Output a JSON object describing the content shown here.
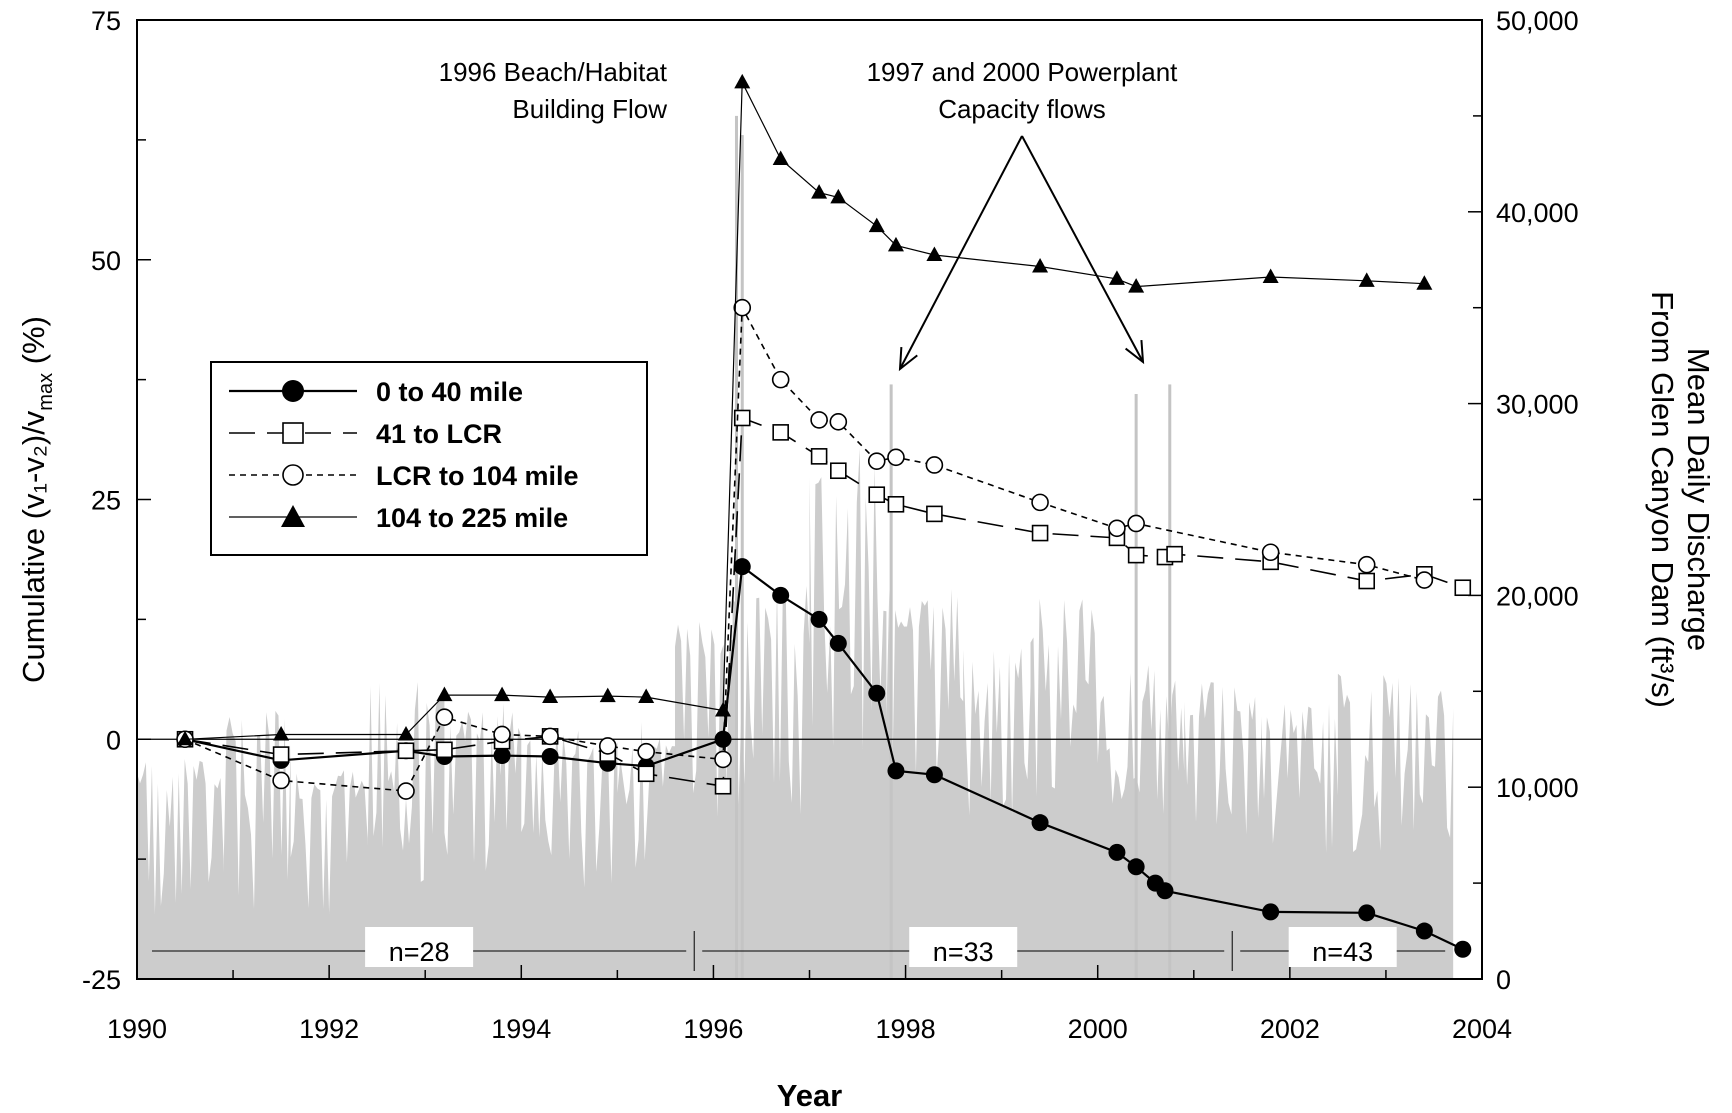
{
  "chart_data": {
    "type": "line",
    "x_label": "Year",
    "y_label": "Cumulative (v₁-v₂)/v",
    "y_label_subscript": "max",
    "y_label_suffix": " (%)",
    "y2_label_line1": "Mean Daily Discharge",
    "y2_label_line2": "From Glen Canyon Dam (ft³/s)",
    "xlim": [
      1990,
      2004
    ],
    "ylim": [
      -25,
      75
    ],
    "y2lim": [
      0,
      50000
    ],
    "x_ticks": [
      "1990",
      "1992",
      "1994",
      "1996",
      "1998",
      "2000",
      "2002",
      "2004"
    ],
    "y_ticks": [
      "75",
      "50",
      "25",
      "0",
      "-25"
    ],
    "y2_ticks": [
      "50,000",
      "40,000",
      "30,000",
      "20,000",
      "10,000",
      "0"
    ],
    "annotations": [
      {
        "lines": [
          "1996 Beach/Habitat",
          "Building Flow"
        ]
      },
      {
        "lines": [
          "1997 and 2000 Powerplant",
          "Capacity flows"
        ]
      }
    ],
    "periods": [
      {
        "label": "n=28",
        "start": 1990.0,
        "end": 1995.8
      },
      {
        "label": "n=33",
        "start": 1995.8,
        "end": 2001.4
      },
      {
        "label": "n=43",
        "start": 2001.4,
        "end": 2003.7
      }
    ],
    "grid": false,
    "legend_position": "upper-left",
    "series": [
      {
        "name": "0 to 40 mile",
        "marker": "filled-circle",
        "line": "solid",
        "x": [
          1990.5,
          1991.5,
          1992.8,
          1993.2,
          1993.8,
          1994.3,
          1994.9,
          1995.3,
          1996.1,
          1996.3,
          1996.7,
          1997.1,
          1997.3,
          1997.7,
          1997.9,
          1998.3,
          1999.4,
          2000.2,
          2000.4,
          2000.6,
          2000.7,
          2001.8,
          2002.8,
          2003.4,
          2003.8
        ],
        "y": [
          0,
          -2.2,
          -1.2,
          -1.8,
          -1.7,
          -1.8,
          -2.5,
          -2.8,
          0,
          18,
          15,
          12.5,
          10,
          4.8,
          -3.3,
          -3.7,
          -8.7,
          -11.8,
          -13.3,
          -15,
          -15.8,
          -18,
          -18.1,
          -20,
          -21.9
        ]
      },
      {
        "name": "41 to LCR",
        "marker": "open-square",
        "line": "long-dash",
        "x": [
          1990.5,
          1991.5,
          1992.8,
          1993.2,
          1993.8,
          1994.3,
          1994.9,
          1995.3,
          1996.1,
          1996.3,
          1996.7,
          1997.1,
          1997.3,
          1997.7,
          1997.9,
          1998.3,
          1999.4,
          2000.2,
          2000.4,
          2000.7,
          2000.8,
          2001.8,
          2002.8,
          2003.4,
          2003.8
        ],
        "y": [
          0,
          -1.6,
          -1.2,
          -1.1,
          -0.2,
          0.3,
          -1.5,
          -3.6,
          -4.9,
          33.5,
          32,
          29.5,
          28,
          25.5,
          24.5,
          23.5,
          21.5,
          21,
          19.2,
          19,
          19.3,
          18.5,
          16.5,
          17.2,
          15.8
        ]
      },
      {
        "name": "LCR to 104 mile",
        "marker": "open-circle",
        "line": "short-dash",
        "x": [
          1990.5,
          1991.5,
          1992.8,
          1993.2,
          1993.8,
          1994.3,
          1994.9,
          1995.3,
          1996.1,
          1996.3,
          1996.7,
          1997.1,
          1997.3,
          1997.7,
          1997.9,
          1998.3,
          1999.4,
          2000.2,
          2000.4,
          2001.8,
          2002.8,
          2003.4
        ],
        "y": [
          0,
          -4.3,
          -5.4,
          2.3,
          0.5,
          0.3,
          -0.7,
          -1.3,
          -2.1,
          45,
          37.5,
          33.3,
          33.1,
          29,
          29.4,
          28.6,
          24.7,
          22,
          22.5,
          19.5,
          18.2,
          16.6
        ]
      },
      {
        "name": "104 to 225 mile",
        "marker": "filled-triangle",
        "line": "thin-solid",
        "x": [
          1990.5,
          1991.5,
          1992.8,
          1993.2,
          1993.8,
          1994.3,
          1994.9,
          1995.3,
          1996.1,
          1996.3,
          1996.7,
          1997.1,
          1997.3,
          1997.7,
          1997.9,
          1998.3,
          1999.4,
          2000.2,
          2000.4,
          2001.8,
          2002.8,
          2003.4
        ],
        "y": [
          0,
          0.5,
          0.5,
          4.6,
          4.6,
          4.4,
          4.5,
          4.4,
          3,
          68.5,
          60.5,
          57,
          56.5,
          53.5,
          51.5,
          50.5,
          49.3,
          48,
          47.2,
          48.2,
          47.8,
          47.5
        ]
      }
    ],
    "discharge_segments": [
      {
        "start": 1990.0,
        "end": 1990.9,
        "low": 3000,
        "high": 11500
      },
      {
        "start": 1990.9,
        "end": 1991.6,
        "low": 3500,
        "high": 14000
      },
      {
        "start": 1991.6,
        "end": 1992.4,
        "low": 3000,
        "high": 11000
      },
      {
        "start": 1992.4,
        "end": 1993.2,
        "low": 4000,
        "high": 15500
      },
      {
        "start": 1993.2,
        "end": 1994.0,
        "low": 5500,
        "high": 14500
      },
      {
        "start": 1994.0,
        "end": 1995.0,
        "low": 4500,
        "high": 13000
      },
      {
        "start": 1995.0,
        "end": 1995.6,
        "low": 5500,
        "high": 13500
      },
      {
        "start": 1995.6,
        "end": 1996.2,
        "low": 8000,
        "high": 19000
      },
      {
        "start": 1996.2,
        "end": 1997.0,
        "low": 8500,
        "high": 20500
      },
      {
        "start": 1997.0,
        "end": 1997.8,
        "low": 12000,
        "high": 28000
      },
      {
        "start": 1997.8,
        "end": 1998.6,
        "low": 9500,
        "high": 21000
      },
      {
        "start": 1998.6,
        "end": 1999.3,
        "low": 8500,
        "high": 17500
      },
      {
        "start": 1999.3,
        "end": 2000.0,
        "low": 9500,
        "high": 20000
      },
      {
        "start": 2000.0,
        "end": 2000.9,
        "low": 8500,
        "high": 16500
      },
      {
        "start": 2000.9,
        "end": 2001.7,
        "low": 7500,
        "high": 15500
      },
      {
        "start": 2001.7,
        "end": 2002.5,
        "low": 6500,
        "high": 14500
      },
      {
        "start": 2002.5,
        "end": 2003.7,
        "low": 6500,
        "high": 16000
      }
    ],
    "discharge_spikes": [
      {
        "x": 1996.24,
        "value": 45000
      },
      {
        "x": 1996.3,
        "value": 44000
      },
      {
        "x": 1997.85,
        "value": 31000
      },
      {
        "x": 2000.4,
        "value": 30500
      },
      {
        "x": 2000.75,
        "value": 31000
      }
    ]
  }
}
